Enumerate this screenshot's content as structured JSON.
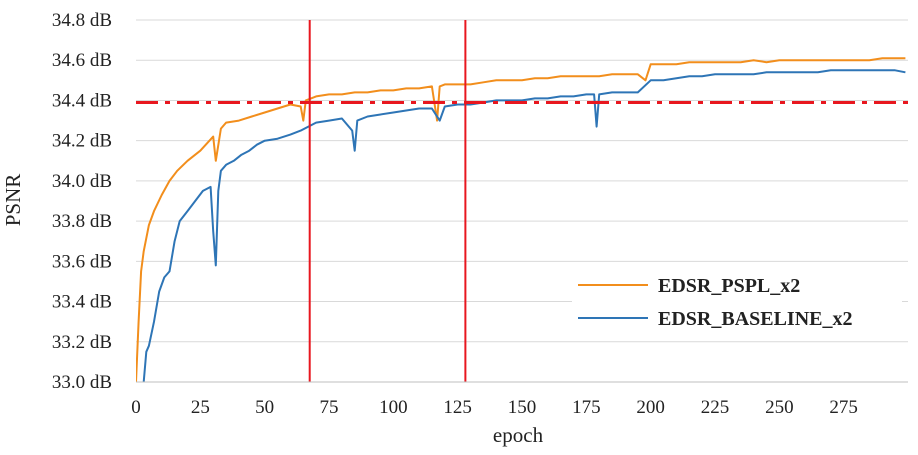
{
  "chart_data": {
    "type": "line",
    "xlabel": "epoch",
    "ylabel": "PSNR",
    "xlim": [
      0,
      300
    ],
    "ylim": [
      33.0,
      34.8
    ],
    "xticks": [
      0,
      25,
      50,
      75,
      100,
      125,
      150,
      175,
      200,
      225,
      250,
      275
    ],
    "xtick_labels": [
      "0",
      "25",
      "50",
      "75",
      "100",
      "125",
      "150",
      "175",
      "200",
      "225",
      "250",
      "275"
    ],
    "yticks": [
      33.0,
      33.2,
      33.4,
      33.6,
      33.8,
      34.0,
      34.2,
      34.4,
      34.6,
      34.8
    ],
    "ytick_labels": [
      "33.0 dB",
      "33.2 dB",
      "33.4 dB",
      "33.6 dB",
      "33.8 dB",
      "34.0 dB",
      "34.2 dB",
      "34.4 dB",
      "34.6 dB",
      "34.8 dB"
    ],
    "grid": "horizontal",
    "legend_position": "lower-right",
    "series": [
      {
        "name": "EDSR_PSPL_x2",
        "color": "#F28E1C",
        "x": [
          0,
          1,
          2,
          3,
          5,
          7,
          10,
          13,
          16,
          20,
          25,
          30,
          31,
          33,
          35,
          40,
          45,
          50,
          55,
          60,
          64,
          65,
          66,
          68,
          70,
          75,
          80,
          85,
          90,
          95,
          100,
          105,
          110,
          115,
          117,
          118,
          120,
          125,
          130,
          135,
          140,
          145,
          150,
          155,
          160,
          165,
          170,
          175,
          180,
          185,
          190,
          195,
          198,
          200,
          205,
          210,
          215,
          220,
          225,
          230,
          235,
          240,
          245,
          250,
          255,
          260,
          265,
          270,
          275,
          280,
          285,
          290,
          295,
          299
        ],
        "y": [
          33.0,
          33.3,
          33.55,
          33.65,
          33.78,
          33.85,
          33.93,
          34.0,
          34.05,
          34.1,
          34.15,
          34.22,
          34.1,
          34.26,
          34.29,
          34.3,
          34.32,
          34.34,
          34.36,
          34.38,
          34.37,
          34.3,
          34.4,
          34.41,
          34.42,
          34.43,
          34.43,
          34.44,
          34.44,
          34.45,
          34.45,
          34.46,
          34.46,
          34.47,
          34.3,
          34.47,
          34.48,
          34.48,
          34.48,
          34.49,
          34.5,
          34.5,
          34.5,
          34.51,
          34.51,
          34.52,
          34.52,
          34.52,
          34.52,
          34.53,
          34.53,
          34.53,
          34.5,
          34.58,
          34.58,
          34.58,
          34.59,
          34.59,
          34.59,
          34.59,
          34.59,
          34.6,
          34.59,
          34.6,
          34.6,
          34.6,
          34.6,
          34.6,
          34.6,
          34.6,
          34.6,
          34.61,
          34.61,
          34.61
        ]
      },
      {
        "name": "EDSR_BASELINE_x2",
        "color": "#2E75B6",
        "x": [
          3,
          4,
          5,
          7,
          9,
          11,
          13,
          15,
          17,
          20,
          23,
          26,
          29,
          30,
          31,
          32,
          33,
          35,
          38,
          41,
          44,
          47,
          50,
          55,
          60,
          64,
          67,
          70,
          75,
          80,
          84,
          85,
          86,
          90,
          95,
          100,
          105,
          110,
          115,
          118,
          120,
          125,
          130,
          135,
          140,
          145,
          150,
          155,
          160,
          165,
          170,
          175,
          178,
          179,
          180,
          185,
          190,
          195,
          200,
          205,
          210,
          215,
          220,
          225,
          230,
          235,
          240,
          245,
          250,
          255,
          260,
          265,
          270,
          275,
          280,
          285,
          290,
          295,
          299
        ],
        "y": [
          33.0,
          33.15,
          33.18,
          33.3,
          33.45,
          33.52,
          33.55,
          33.7,
          33.8,
          33.85,
          33.9,
          33.95,
          33.97,
          33.75,
          33.58,
          33.95,
          34.05,
          34.08,
          34.1,
          34.13,
          34.15,
          34.18,
          34.2,
          34.21,
          34.23,
          34.25,
          34.27,
          34.29,
          34.3,
          34.31,
          34.25,
          34.15,
          34.3,
          34.32,
          34.33,
          34.34,
          34.35,
          34.36,
          34.36,
          34.3,
          34.37,
          34.38,
          34.38,
          34.39,
          34.4,
          34.4,
          34.4,
          34.41,
          34.41,
          34.42,
          34.42,
          34.43,
          34.43,
          34.27,
          34.43,
          34.44,
          34.44,
          34.44,
          34.5,
          34.5,
          34.51,
          34.52,
          34.52,
          34.53,
          34.53,
          34.53,
          34.53,
          34.54,
          34.54,
          34.54,
          34.54,
          34.54,
          34.55,
          34.55,
          34.55,
          34.55,
          34.55,
          34.55,
          34.54
        ]
      }
    ],
    "reference_lines": {
      "horizontal": {
        "y": 34.39,
        "color": "#E8171F",
        "style": "dash-dot"
      },
      "vertical": [
        {
          "x": 67.5,
          "color": "#E8171F"
        },
        {
          "x": 128,
          "color": "#E8171F"
        }
      ]
    }
  }
}
